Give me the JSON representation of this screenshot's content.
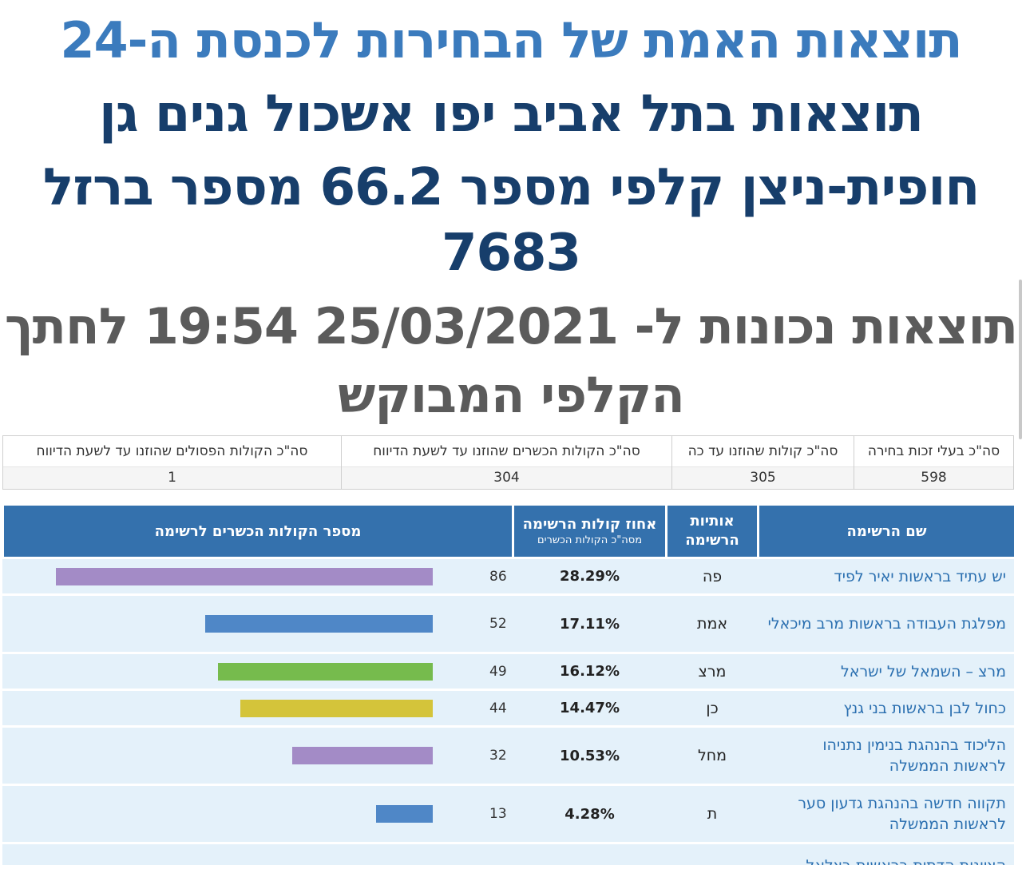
{
  "header": {
    "title": "תוצאות האמת של הבחירות לכנסת ה-24",
    "subtitle_line1": "תוצאות בתל אביב יפו אשכול גנים גן",
    "subtitle_line2": "חופית-ניצן קלפי מספר 66.2 מספר ברזל",
    "subtitle_line3": "7683",
    "updated_line1": "תוצאות נכונות ל- 25/03/2021 19:54  לחתך",
    "updated_line2": "הקלפי המבוקש"
  },
  "summary": [
    {
      "label": "סה\"כ בעלי זכות בחירה",
      "value": "598"
    },
    {
      "label": "סה\"כ קולות שהוזנו עד כה",
      "value": "305"
    },
    {
      "label": "סה\"כ הקולות הכשרים שהוזנו עד לשעת הדיווח",
      "value": "304"
    },
    {
      "label": "סה\"כ הקולות הפסולים שהוזנו עד לשעת הדיווח",
      "value": "1"
    }
  ],
  "table": {
    "headers": {
      "name": "שם הרשימה",
      "letters": "אותיות הרשימה",
      "pct": "אחוז קולות הרשימה",
      "pct_sub": "מסה\"כ הקולות הכשרים",
      "votes": "מספר הקולות הכשרים לרשימה"
    },
    "max_votes": 86,
    "rows": [
      {
        "name": "יש עתיד בראשות יאיר לפיד",
        "letters": "פה",
        "pct": "28.29%",
        "votes": 86,
        "color": "#a38bc6"
      },
      {
        "name": "מפלגת העבודה בראשות מרב מיכאלי",
        "letters": "אמת",
        "pct": "17.11%",
        "votes": 52,
        "color": "#4f87c7"
      },
      {
        "name": "מרצ – השמאל של ישראל",
        "letters": "מרצ",
        "pct": "16.12%",
        "votes": 49,
        "color": "#76bb4d"
      },
      {
        "name": "כחול לבן בראשות בני גנץ",
        "letters": "כן",
        "pct": "14.47%",
        "votes": 44,
        "color": "#d4c43a"
      },
      {
        "name": "הליכוד בהנהגת בנימין נתניהו לראשות הממשלה",
        "letters": "מחל",
        "pct": "10.53%",
        "votes": 32,
        "color": "#a38bc6"
      },
      {
        "name": "תקווה חדשה בהנהגת גדעון סער לראשות הממשלה",
        "letters": "ת",
        "pct": "4.28%",
        "votes": 13,
        "color": "#4f87c7"
      },
      {
        "name": "הציונות הדתית בראשות בצלאל",
        "letters": "",
        "pct": "",
        "votes": null,
        "color": "#76bb4d"
      }
    ]
  }
}
